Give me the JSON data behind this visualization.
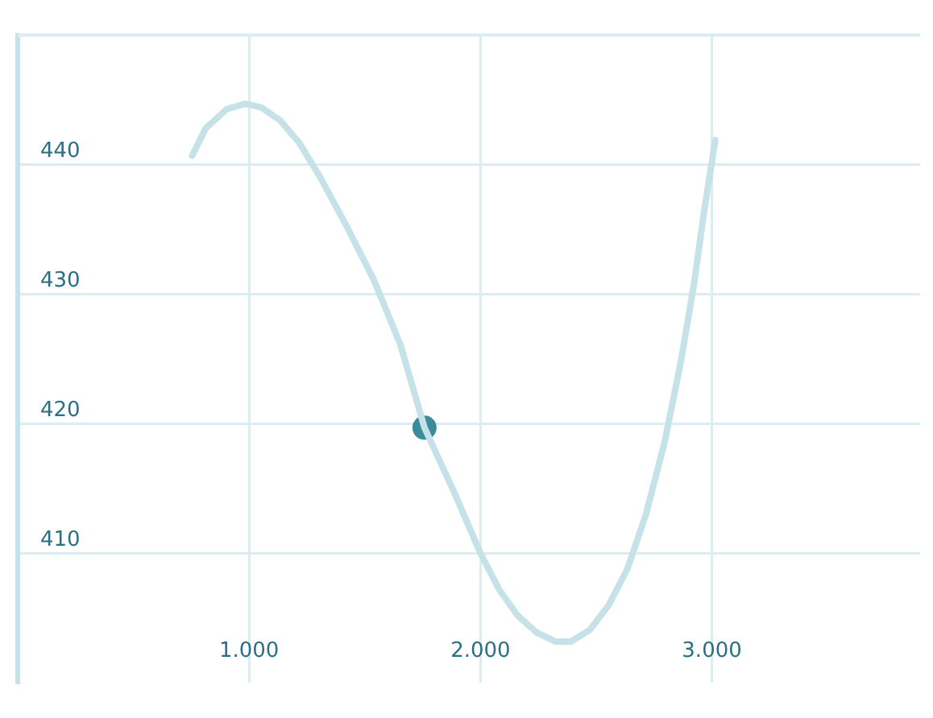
{
  "chart_data": {
    "type": "line",
    "xlim": [
      0,
      3.9
    ],
    "ylim": [
      400,
      450
    ],
    "xticks": [
      {
        "value": 1,
        "label": "1.000"
      },
      {
        "value": 2,
        "label": "2.000"
      },
      {
        "value": 3,
        "label": "3.000"
      }
    ],
    "yticks": [
      410,
      420,
      430,
      440
    ],
    "grid": true,
    "legend": false,
    "marker": "none",
    "line_style": "solid",
    "series": [
      {
        "color": "#c6e2e9",
        "x": [
          0.754,
          0.812,
          0.904,
          0.985,
          1.054,
          1.135,
          1.216,
          1.308,
          1.423,
          1.539,
          1.654,
          1.758,
          1.884,
          2.0,
          2.081,
          2.161,
          2.242,
          2.323,
          2.392,
          2.473,
          2.554,
          2.635,
          2.715,
          2.796,
          2.865,
          2.922,
          2.969,
          3.015
        ],
        "values": [
          440.7,
          442.8,
          444.3,
          444.7,
          444.4,
          443.4,
          441.7,
          439.0,
          435.2,
          431.1,
          426.1,
          419.7,
          414.8,
          410.0,
          407.2,
          405.2,
          403.9,
          403.2,
          403.2,
          404.1,
          406.0,
          408.8,
          413.0,
          418.6,
          424.7,
          430.7,
          436.7,
          441.9
        ]
      },
      {
        "type": "scatter",
        "marker": "circle",
        "color": "#3d8a9b",
        "x": [
          1.758
        ],
        "values": [
          419.7
        ]
      }
    ]
  }
}
